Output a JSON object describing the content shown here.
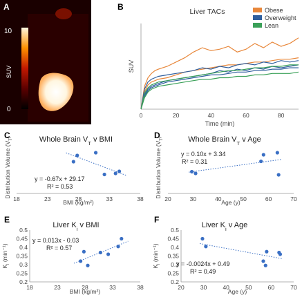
{
  "panels": {
    "A": {
      "letter": "A",
      "colorbar_label": "SUV",
      "colorbar_max": "10",
      "colorbar_min": "0"
    },
    "B": {
      "letter": "B"
    },
    "C": {
      "letter": "C"
    },
    "D": {
      "letter": "D"
    },
    "E": {
      "letter": "E"
    },
    "F": {
      "letter": "F"
    }
  },
  "colors": {
    "obese": "#e8873a",
    "overweight": "#2f5f9e",
    "lean": "#3aa058",
    "scatter": "#3a6fc4"
  },
  "chart_data": [
    {
      "id": "B",
      "type": "line",
      "title": "Liver TACs",
      "xlabel": "Time (min)",
      "ylabel": "SUV",
      "xlim": [
        0,
        90
      ],
      "ylim": [
        0,
        60
      ],
      "xticks": [
        0,
        20,
        40,
        60,
        80
      ],
      "yticks": [
        0,
        10,
        20,
        30,
        40,
        50,
        60
      ],
      "legend_position": "top-right",
      "legend": [
        "Obese",
        "Overweight",
        "Lean"
      ],
      "series": [
        {
          "group": "Obese",
          "x": [
            0,
            2,
            4,
            6,
            8,
            10,
            15,
            20,
            25,
            30,
            35,
            40,
            45,
            50,
            55,
            60,
            65,
            70,
            75,
            80,
            85,
            90
          ],
          "y": [
            0,
            16,
            22,
            25,
            27,
            28,
            30,
            33,
            36,
            40,
            43,
            41,
            42,
            44,
            40,
            42,
            46,
            43,
            47,
            44,
            46,
            50
          ]
        },
        {
          "group": "Obese",
          "x": [
            0,
            2,
            4,
            6,
            8,
            10,
            15,
            20,
            25,
            30,
            35,
            40,
            45,
            50,
            55,
            60,
            65,
            70,
            75,
            80,
            85,
            90
          ],
          "y": [
            0,
            12,
            17,
            19,
            20,
            21,
            22,
            24,
            26,
            27,
            28,
            29,
            30,
            31,
            31,
            32,
            33,
            33,
            34,
            35,
            35,
            36
          ]
        },
        {
          "group": "Overweight",
          "x": [
            0,
            2,
            4,
            6,
            8,
            10,
            15,
            20,
            25,
            30,
            35,
            40,
            45,
            50,
            55,
            60,
            65,
            70,
            75,
            80,
            85,
            90
          ],
          "y": [
            0,
            14,
            19,
            21,
            22,
            23,
            24,
            25,
            26,
            27,
            29,
            28,
            30,
            29,
            31,
            32,
            31,
            33,
            32,
            34,
            33,
            34
          ]
        },
        {
          "group": "Overweight",
          "x": [
            0,
            2,
            4,
            6,
            8,
            10,
            15,
            20,
            25,
            30,
            35,
            40,
            45,
            50,
            55,
            60,
            65,
            70,
            75,
            80,
            85,
            90
          ],
          "y": [
            0,
            10,
            14,
            16,
            17,
            18,
            20,
            21,
            22,
            23,
            24,
            25,
            27,
            26,
            28,
            27,
            29,
            28,
            30,
            29,
            30,
            31
          ]
        },
        {
          "group": "Overweight",
          "x": [
            0,
            2,
            4,
            6,
            8,
            10,
            15,
            20,
            25,
            30,
            35,
            40,
            45,
            50,
            55,
            60,
            65,
            70,
            75,
            80,
            85,
            90
          ],
          "y": [
            0,
            9,
            13,
            15,
            16,
            17,
            19,
            20,
            21,
            22,
            23,
            24,
            24,
            25,
            26,
            26,
            27,
            27,
            28,
            28,
            29,
            29
          ]
        },
        {
          "group": "Lean",
          "x": [
            0,
            2,
            4,
            6,
            8,
            10,
            15,
            20,
            25,
            30,
            35,
            40,
            45,
            50,
            55,
            60,
            65,
            70,
            75,
            80,
            85,
            90
          ],
          "y": [
            0,
            8,
            12,
            14,
            15,
            16,
            17,
            18,
            19,
            20,
            21,
            21,
            22,
            22,
            23,
            23,
            24,
            24,
            25,
            25,
            25,
            26
          ]
        },
        {
          "group": "Lean",
          "x": [
            0,
            2,
            4,
            6,
            8,
            10,
            15,
            20,
            25,
            30,
            35,
            40,
            45,
            50,
            55,
            60,
            65,
            70,
            75,
            80,
            85,
            90
          ],
          "y": [
            0,
            11,
            15,
            17,
            18,
            19,
            20,
            21,
            22,
            23,
            24,
            25,
            26,
            27,
            27,
            28,
            29,
            29,
            30,
            30,
            31,
            31
          ]
        }
      ]
    },
    {
      "id": "C",
      "type": "scatter",
      "title": "Whole Brain V",
      "title_sub": "T",
      "title_suffix": " v BMI",
      "xlabel": "BMI (kg/m²)",
      "ylabel": "Distribution Volume (V",
      "ylabel_sub": "T",
      "ylabel_suffix": ")",
      "xlim": [
        18,
        38
      ],
      "ylim": [
        0,
        15
      ],
      "xticks": [
        18,
        23,
        28,
        33,
        38
      ],
      "x": [
        27.2,
        27.8,
        30.8,
        32.2,
        34.0,
        34.6
      ],
      "y": [
        9.2,
        11.0,
        11.8,
        5.5,
        5.8,
        6.4
      ],
      "trendline": {
        "slope": -0.67,
        "intercept": 29.17
      },
      "equation": "y = -0.67x + 29.17",
      "r2": "R² = 0.53"
    },
    {
      "id": "D",
      "type": "scatter",
      "title": "Whole Brain V",
      "title_sub": "T",
      "title_suffix": " v Age",
      "xlabel": "Age (y)",
      "ylabel": "Distribution Volume (V",
      "ylabel_sub": "T",
      "ylabel_suffix": ")",
      "xlim": [
        20,
        70
      ],
      "ylim": [
        0,
        15
      ],
      "xticks": [
        20,
        30,
        40,
        50,
        60,
        70
      ],
      "x": [
        29.5,
        31.0,
        57.0,
        58.0,
        63.5,
        64.0
      ],
      "y": [
        6.3,
        5.8,
        9.3,
        11.2,
        11.8,
        5.4
      ],
      "trendline": {
        "slope": 0.1,
        "intercept": 3.34
      },
      "equation": "y = 0.10x + 3.34",
      "r2": "R² = 0.31"
    },
    {
      "id": "E",
      "type": "scatter",
      "title": "Liver K",
      "title_sub": "i",
      "title_suffix": " v BMI",
      "xlabel": "BMI (kg/m²)",
      "ylabel": "K",
      "ylabel_sub": "i",
      "ylabel_suffix": " (min⁻¹)",
      "xlim": [
        18,
        38
      ],
      "ylim": [
        0.2,
        0.5
      ],
      "xticks": [
        18,
        23,
        28,
        33,
        38
      ],
      "yticks": [
        0.2,
        0.25,
        0.3,
        0.35,
        0.4,
        0.45,
        0.5
      ],
      "x": [
        27.2,
        27.8,
        28.5,
        30.8,
        32.2,
        34.0,
        34.6
      ],
      "y": [
        0.32,
        0.375,
        0.295,
        0.37,
        0.36,
        0.405,
        0.45
      ],
      "trendline": {
        "slope": 0.013,
        "intercept": -0.03
      },
      "equation": "y = 0.013x - 0.03",
      "r2": "R² = 0.57"
    },
    {
      "id": "F",
      "type": "scatter",
      "title": "Liver K",
      "title_sub": "i",
      "title_suffix": " v Age",
      "xlabel": "Age (y)",
      "ylabel": "K",
      "ylabel_sub": "i",
      "ylabel_suffix": " (min⁻¹)",
      "xlim": [
        20,
        70
      ],
      "ylim": [
        0.2,
        0.5
      ],
      "xticks": [
        20,
        30,
        40,
        50,
        60,
        70
      ],
      "yticks": [
        0.2,
        0.25,
        0.3,
        0.35,
        0.4,
        0.45,
        0.5
      ],
      "x": [
        29.5,
        31.0,
        56.5,
        57.5,
        58.0,
        63.5,
        64.0
      ],
      "y": [
        0.45,
        0.405,
        0.32,
        0.295,
        0.375,
        0.37,
        0.36
      ],
      "trendline": {
        "slope": -0.0024,
        "intercept": 0.49
      },
      "equation": "y = -0.0024x + 0.49",
      "r2": "R² = 0.49"
    }
  ]
}
